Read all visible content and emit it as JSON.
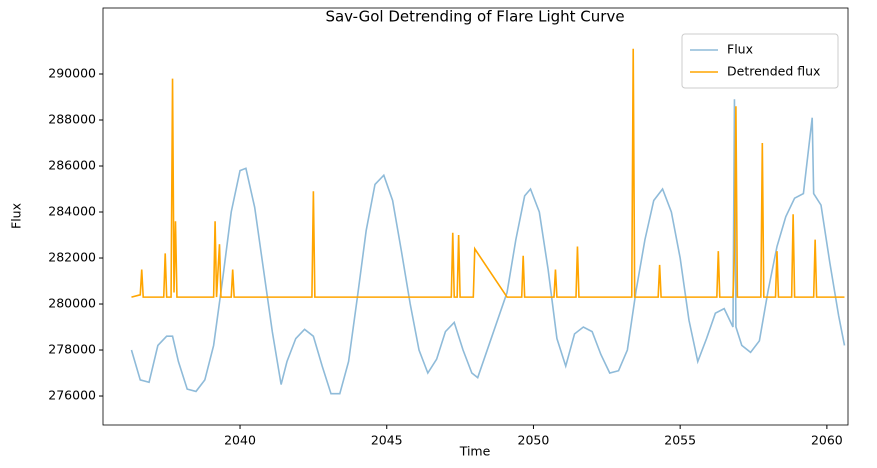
{
  "chart_data": {
    "type": "line",
    "title": "Sav-Gol Detrending of Flare Light Curve",
    "xlabel": "Time",
    "ylabel": "Flux",
    "xlim": [
      2035.33,
      2060.72
    ],
    "ylim": [
      274740,
      292870
    ],
    "xticks": [
      2040,
      2045,
      2050,
      2055,
      2060
    ],
    "yticks": [
      276000,
      278000,
      280000,
      282000,
      284000,
      286000,
      288000,
      290000
    ],
    "legend": "upper right",
    "series": [
      {
        "name": "Flux",
        "color": "#1f77b4",
        "alpha": 0.5,
        "x": [
          2036.3,
          2036.6,
          2036.9,
          2037.2,
          2037.5,
          2037.7,
          2037.9,
          2038.2,
          2038.5,
          2038.8,
          2039.1,
          2039.4,
          2039.7,
          2040.0,
          2040.2,
          2040.5,
          2040.8,
          2041.1,
          2041.4,
          2041.6,
          2041.9,
          2042.2,
          2042.5,
          2042.8,
          2043.1,
          2043.4,
          2043.7,
          2044.0,
          2044.3,
          2044.6,
          2044.9,
          2045.2,
          2045.5,
          2045.8,
          2046.1,
          2046.4,
          2046.7,
          2047.0,
          2047.3,
          2047.6,
          2047.9,
          2048.1,
          2049.1,
          2049.4,
          2049.7,
          2049.9,
          2050.2,
          2050.5,
          2050.8,
          2051.1,
          2051.4,
          2051.7,
          2052.0,
          2052.3,
          2052.6,
          2052.9,
          2053.2,
          2053.5,
          2053.8,
          2054.1,
          2054.4,
          2054.7,
          2055.0,
          2055.3,
          2055.6,
          2055.9,
          2056.2,
          2056.5,
          2056.8,
          2056.85,
          2056.9,
          2057.1,
          2057.4,
          2057.7,
          2058.0,
          2058.3,
          2058.6,
          2058.9,
          2059.2,
          2059.5,
          2059.55,
          2059.8,
          2060.1,
          2060.4,
          2060.6
        ],
        "values": [
          278000,
          276700,
          276600,
          278200,
          278600,
          278600,
          277500,
          276300,
          276200,
          276700,
          278200,
          281000,
          284000,
          285800,
          285900,
          284200,
          281500,
          278800,
          276500,
          277500,
          278500,
          278900,
          278600,
          277300,
          276100,
          276100,
          277500,
          280300,
          283200,
          285200,
          285600,
          284500,
          282300,
          280000,
          278000,
          277000,
          277600,
          278800,
          279200,
          278000,
          277000,
          276800,
          280500,
          282800,
          284700,
          285000,
          284000,
          281500,
          278500,
          277300,
          278700,
          279000,
          278800,
          277800,
          277000,
          277100,
          278000,
          280600,
          282800,
          284500,
          285000,
          284000,
          282000,
          279300,
          277500,
          278500,
          279600,
          279800,
          279000,
          288900,
          279000,
          278200,
          277900,
          278400,
          280600,
          282500,
          283800,
          284600,
          284800,
          288100,
          284800,
          284300,
          281800,
          279500,
          278200
        ]
      },
      {
        "name": "Detrended flux",
        "color": "#ffa500",
        "x": [
          2036.3,
          2036.6,
          2036.65,
          2036.7,
          2037.4,
          2037.45,
          2037.5,
          2037.65,
          2037.7,
          2037.75,
          2037.8,
          2037.85,
          2039.1,
          2039.15,
          2039.2,
          2039.3,
          2039.35,
          2039.7,
          2039.75,
          2039.8,
          2042.45,
          2042.5,
          2042.55,
          2047.2,
          2047.25,
          2047.3,
          2047.4,
          2047.45,
          2047.5,
          2047.95,
          2048.0,
          2049.1,
          2049.6,
          2049.65,
          2049.7,
          2050.7,
          2050.75,
          2050.8,
          2051.45,
          2051.5,
          2051.55,
          2053.35,
          2053.4,
          2053.45,
          2054.25,
          2054.3,
          2054.35,
          2056.25,
          2056.3,
          2056.35,
          2056.8,
          2056.85,
          2056.9,
          2056.95,
          2057.75,
          2057.8,
          2057.85,
          2058.25,
          2058.3,
          2058.35,
          2058.8,
          2058.85,
          2058.9,
          2059.55,
          2059.6,
          2059.65,
          2060.6
        ],
        "values": [
          280300,
          280400,
          281500,
          280300,
          280300,
          282200,
          280300,
          280300,
          289800,
          280500,
          283600,
          280300,
          280300,
          283600,
          280300,
          282600,
          280300,
          280300,
          281500,
          280300,
          280300,
          284900,
          280300,
          280300,
          283100,
          280300,
          280300,
          283000,
          280300,
          280300,
          282400,
          280300,
          280300,
          282100,
          280300,
          280300,
          281500,
          280300,
          280300,
          282500,
          280300,
          280300,
          291100,
          280300,
          280300,
          281700,
          280300,
          280300,
          282300,
          280300,
          280300,
          282300,
          288600,
          280300,
          280300,
          287000,
          280300,
          280300,
          282300,
          280300,
          280300,
          283900,
          280300,
          280300,
          282800,
          280300,
          280300
        ]
      }
    ]
  }
}
